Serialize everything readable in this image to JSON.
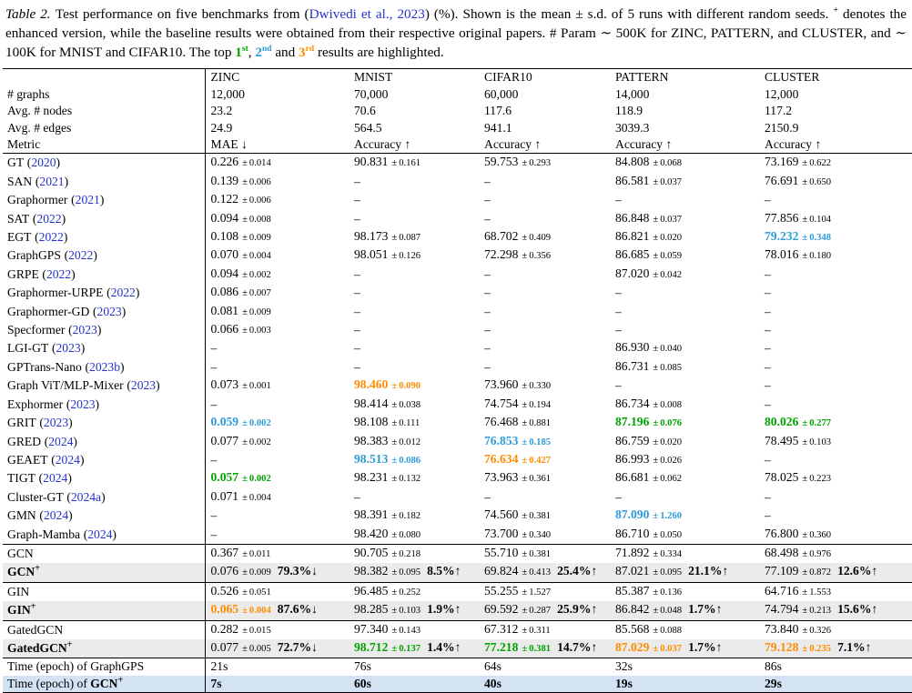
{
  "symbols": {
    "pm": "±",
    "plus": "+",
    "lparen": "(",
    "rparen": ")"
  },
  "colors": {
    "first": "#00a300",
    "second": "#2e9bd8",
    "third": "#ff8c00",
    "link": "#2433cc",
    "row_gray": "#ebebeb",
    "row_blue": "#d3e3f3"
  },
  "caption": {
    "label": "Table 2.",
    "seg1": "Test performance on five benchmarks from (",
    "cite": "Dwivedi et al., 2023",
    "seg2": ") (%). Shown is the mean ± s.d. of 5 runs with different random seeds. ",
    "plus_sym": "+",
    "seg3": " denotes the enhanced version, while the baseline results were obtained from their respective original papers. # Param ∼ 500K for ZINC, PATTERN, and CLUSTER, and ∼ 100K for MNIST and CIFAR10. The top ",
    "rank1": {
      "base": "1",
      "sup": "st"
    },
    "sep12": ", ",
    "rank2": {
      "base": "2",
      "sup": "nd"
    },
    "sep23": " and ",
    "rank3": {
      "base": "3",
      "sup": "rd"
    },
    "seg4": " results are highlighted."
  },
  "table": {
    "columns": [
      "ZINC",
      "MNIST",
      "CIFAR10",
      "PATTERN",
      "CLUSTER"
    ],
    "header_rows": [
      {
        "label": "# graphs",
        "values": [
          "12,000",
          "70,000",
          "60,000",
          "14,000",
          "12,000"
        ]
      },
      {
        "label": "Avg. # nodes",
        "values": [
          "23.2",
          "70.6",
          "117.6",
          "118.9",
          "117.2"
        ]
      },
      {
        "label": "Avg. # edges",
        "values": [
          "24.9",
          "564.5",
          "941.1",
          "3039.3",
          "2150.9"
        ]
      },
      {
        "label": "Metric",
        "values": [
          "MAE ↓",
          "Accuracy ↑",
          "Accuracy ↑",
          "Accuracy ↑",
          "Accuracy ↑"
        ]
      }
    ],
    "groups": [
      {
        "name": "baselines",
        "rows": [
          {
            "name": "GT",
            "year": "2020",
            "cells": [
              {
                "v": "0.226",
                "s": "0.014"
              },
              {
                "v": "90.831",
                "s": "0.161"
              },
              {
                "v": "59.753",
                "s": "0.293"
              },
              {
                "v": "84.808",
                "s": "0.068"
              },
              {
                "v": "73.169",
                "s": "0.622"
              }
            ]
          },
          {
            "name": "SAN",
            "year": "2021",
            "cells": [
              {
                "v": "0.139",
                "s": "0.006"
              },
              {
                "v": "–"
              },
              {
                "v": "–"
              },
              {
                "v": "86.581",
                "s": "0.037"
              },
              {
                "v": "76.691",
                "s": "0.650"
              }
            ]
          },
          {
            "name": "Graphormer",
            "year": "2021",
            "cells": [
              {
                "v": "0.122",
                "s": "0.006"
              },
              {
                "v": "–"
              },
              {
                "v": "–"
              },
              {
                "v": "–"
              },
              {
                "v": "–"
              }
            ]
          },
          {
            "name": "SAT",
            "year": "2022",
            "cells": [
              {
                "v": "0.094",
                "s": "0.008"
              },
              {
                "v": "–"
              },
              {
                "v": "–"
              },
              {
                "v": "86.848",
                "s": "0.037"
              },
              {
                "v": "77.856",
                "s": "0.104"
              }
            ]
          },
          {
            "name": "EGT",
            "year": "2022",
            "cells": [
              {
                "v": "0.108",
                "s": "0.009"
              },
              {
                "v": "98.173",
                "s": "0.087"
              },
              {
                "v": "68.702",
                "s": "0.409"
              },
              {
                "v": "86.821",
                "s": "0.020"
              },
              {
                "v": "79.232",
                "s": "0.348",
                "c": "b"
              }
            ]
          },
          {
            "name": "GraphGPS",
            "year": "2022",
            "cells": [
              {
                "v": "0.070",
                "s": "0.004"
              },
              {
                "v": "98.051",
                "s": "0.126"
              },
              {
                "v": "72.298",
                "s": "0.356"
              },
              {
                "v": "86.685",
                "s": "0.059"
              },
              {
                "v": "78.016",
                "s": "0.180"
              }
            ]
          },
          {
            "name": "GRPE",
            "year": "2022",
            "cells": [
              {
                "v": "0.094",
                "s": "0.002"
              },
              {
                "v": "–"
              },
              {
                "v": "–"
              },
              {
                "v": "87.020",
                "s": "0.042"
              },
              {
                "v": "–"
              }
            ]
          },
          {
            "name": "Graphormer-URPE",
            "year": "2022",
            "cells": [
              {
                "v": "0.086",
                "s": "0.007"
              },
              {
                "v": "–"
              },
              {
                "v": "–"
              },
              {
                "v": "–"
              },
              {
                "v": "–"
              }
            ]
          },
          {
            "name": "Graphormer-GD",
            "year": "2023",
            "cells": [
              {
                "v": "0.081",
                "s": "0.009"
              },
              {
                "v": "–"
              },
              {
                "v": "–"
              },
              {
                "v": "–"
              },
              {
                "v": "–"
              }
            ]
          },
          {
            "name": "Specformer",
            "year": "2023",
            "cells": [
              {
                "v": "0.066",
                "s": "0.003"
              },
              {
                "v": "–"
              },
              {
                "v": "–"
              },
              {
                "v": "–"
              },
              {
                "v": "–"
              }
            ]
          },
          {
            "name": "LGI-GT",
            "year": "2023",
            "cells": [
              {
                "v": "–"
              },
              {
                "v": "–"
              },
              {
                "v": "–"
              },
              {
                "v": "86.930",
                "s": "0.040"
              },
              {
                "v": "–"
              }
            ]
          },
          {
            "name": "GPTrans-Nano",
            "year": "2023b",
            "cells": [
              {
                "v": "–"
              },
              {
                "v": "–"
              },
              {
                "v": "–"
              },
              {
                "v": "86.731",
                "s": "0.085"
              },
              {
                "v": "–"
              }
            ]
          },
          {
            "name": "Graph ViT/MLP-Mixer",
            "year": "2023",
            "cells": [
              {
                "v": "0.073",
                "s": "0.001"
              },
              {
                "v": "98.460",
                "s": "0.090",
                "c": "o"
              },
              {
                "v": "73.960",
                "s": "0.330"
              },
              {
                "v": "–"
              },
              {
                "v": "–"
              }
            ]
          },
          {
            "name": "Exphormer",
            "year": "2023",
            "cells": [
              {
                "v": "–"
              },
              {
                "v": "98.414",
                "s": "0.038"
              },
              {
                "v": "74.754",
                "s": "0.194"
              },
              {
                "v": "86.734",
                "s": "0.008"
              },
              {
                "v": "–"
              }
            ]
          },
          {
            "name": "GRIT",
            "year": "2023",
            "cells": [
              {
                "v": "0.059",
                "s": "0.002",
                "c": "b"
              },
              {
                "v": "98.108",
                "s": "0.111"
              },
              {
                "v": "76.468",
                "s": "0.881"
              },
              {
                "v": "87.196",
                "s": "0.076",
                "c": "g"
              },
              {
                "v": "80.026",
                "s": "0.277",
                "c": "g"
              }
            ]
          },
          {
            "name": "GRED",
            "year": "2024",
            "cells": [
              {
                "v": "0.077",
                "s": "0.002"
              },
              {
                "v": "98.383",
                "s": "0.012"
              },
              {
                "v": "76.853",
                "s": "0.185",
                "c": "b"
              },
              {
                "v": "86.759",
                "s": "0.020"
              },
              {
                "v": "78.495",
                "s": "0.103"
              }
            ]
          },
          {
            "name": "GEAET",
            "year": "2024",
            "cells": [
              {
                "v": "–"
              },
              {
                "v": "98.513",
                "s": "0.086",
                "c": "b"
              },
              {
                "v": "76.634",
                "s": "0.427",
                "c": "o"
              },
              {
                "v": "86.993",
                "s": "0.026"
              },
              {
                "v": "–"
              }
            ]
          },
          {
            "name": "TIGT",
            "year": "2024",
            "cells": [
              {
                "v": "0.057",
                "s": "0.002",
                "c": "g"
              },
              {
                "v": "98.231",
                "s": "0.132"
              },
              {
                "v": "73.963",
                "s": "0.361"
              },
              {
                "v": "86.681",
                "s": "0.062"
              },
              {
                "v": "78.025",
                "s": "0.223"
              }
            ]
          },
          {
            "name": "Cluster-GT",
            "year": "2024a",
            "cells": [
              {
                "v": "0.071",
                "s": "0.004"
              },
              {
                "v": "–"
              },
              {
                "v": "–"
              },
              {
                "v": "–"
              },
              {
                "v": "–"
              }
            ]
          },
          {
            "name": "GMN",
            "year": "2024",
            "cells": [
              {
                "v": "–"
              },
              {
                "v": "98.391",
                "s": "0.182"
              },
              {
                "v": "74.560",
                "s": "0.381"
              },
              {
                "v": "87.090",
                "s": "1.260",
                "c": "b"
              },
              {
                "v": "–"
              }
            ]
          },
          {
            "name": "Graph-Mamba",
            "year": "2024",
            "cells": [
              {
                "v": "–"
              },
              {
                "v": "98.420",
                "s": "0.080"
              },
              {
                "v": "73.700",
                "s": "0.340"
              },
              {
                "v": "86.710",
                "s": "0.050"
              },
              {
                "v": "76.800",
                "s": "0.360"
              }
            ]
          }
        ]
      },
      {
        "name": "gcn",
        "rows": [
          {
            "name": "GCN",
            "cells": [
              {
                "v": "0.367",
                "s": "0.011"
              },
              {
                "v": "90.705",
                "s": "0.218"
              },
              {
                "v": "55.710",
                "s": "0.381"
              },
              {
                "v": "71.892",
                "s": "0.334"
              },
              {
                "v": "68.498",
                "s": "0.976"
              }
            ]
          },
          {
            "name": "GCN",
            "plus": true,
            "bold": true,
            "bg": "gray",
            "cells": [
              {
                "v": "0.076",
                "s": "0.009",
                "d": "79.3%↓"
              },
              {
                "v": "98.382",
                "s": "0.095",
                "d": "8.5%↑"
              },
              {
                "v": "69.824",
                "s": "0.413",
                "d": "25.4%↑"
              },
              {
                "v": "87.021",
                "s": "0.095",
                "d": "21.1%↑"
              },
              {
                "v": "77.109",
                "s": "0.872",
                "d": "12.6%↑"
              }
            ]
          }
        ]
      },
      {
        "name": "gin",
        "rows": [
          {
            "name": "GIN",
            "cells": [
              {
                "v": "0.526",
                "s": "0.051"
              },
              {
                "v": "96.485",
                "s": "0.252"
              },
              {
                "v": "55.255",
                "s": "1.527"
              },
              {
                "v": "85.387",
                "s": "0.136"
              },
              {
                "v": "64.716",
                "s": "1.553"
              }
            ]
          },
          {
            "name": "GIN",
            "plus": true,
            "bold": true,
            "bg": "gray",
            "cells": [
              {
                "v": "0.065",
                "s": "0.004",
                "c": "o",
                "d": "87.6%↓"
              },
              {
                "v": "98.285",
                "s": "0.103",
                "d": "1.9%↑"
              },
              {
                "v": "69.592",
                "s": "0.287",
                "d": "25.9%↑"
              },
              {
                "v": "86.842",
                "s": "0.048",
                "d": "1.7%↑"
              },
              {
                "v": "74.794",
                "s": "0.213",
                "d": "15.6%↑"
              }
            ]
          }
        ]
      },
      {
        "name": "gatedgcn",
        "rows": [
          {
            "name": "GatedGCN",
            "cells": [
              {
                "v": "0.282",
                "s": "0.015"
              },
              {
                "v": "97.340",
                "s": "0.143"
              },
              {
                "v": "67.312",
                "s": "0.311"
              },
              {
                "v": "85.568",
                "s": "0.088"
              },
              {
                "v": "73.840",
                "s": "0.326"
              }
            ]
          },
          {
            "name": "GatedGCN",
            "plus": true,
            "bold": true,
            "bg": "gray",
            "cells": [
              {
                "v": "0.077",
                "s": "0.005",
                "d": "72.7%↓"
              },
              {
                "v": "98.712",
                "s": "0.137",
                "c": "g",
                "d": "1.4%↑"
              },
              {
                "v": "77.218",
                "s": "0.381",
                "c": "g",
                "d": "14.7%↑"
              },
              {
                "v": "87.029",
                "s": "0.037",
                "c": "o",
                "d": "1.7%↑"
              },
              {
                "v": "79.128",
                "s": "0.235",
                "c": "o",
                "d": "7.1%↑"
              }
            ]
          }
        ]
      },
      {
        "name": "time",
        "rows": [
          {
            "pre": "Time (epoch) of ",
            "name": "GraphGPS",
            "cells": [
              {
                "v": "21s"
              },
              {
                "v": "76s"
              },
              {
                "v": "64s"
              },
              {
                "v": "32s"
              },
              {
                "v": "86s"
              }
            ]
          },
          {
            "pre": "Time (epoch) of ",
            "name": "GCN",
            "plus": true,
            "bold": true,
            "bg": "blue",
            "vb": true,
            "cells": [
              {
                "v": "7s"
              },
              {
                "v": "60s"
              },
              {
                "v": "40s"
              },
              {
                "v": "19s"
              },
              {
                "v": "29s"
              }
            ]
          }
        ]
      }
    ]
  }
}
